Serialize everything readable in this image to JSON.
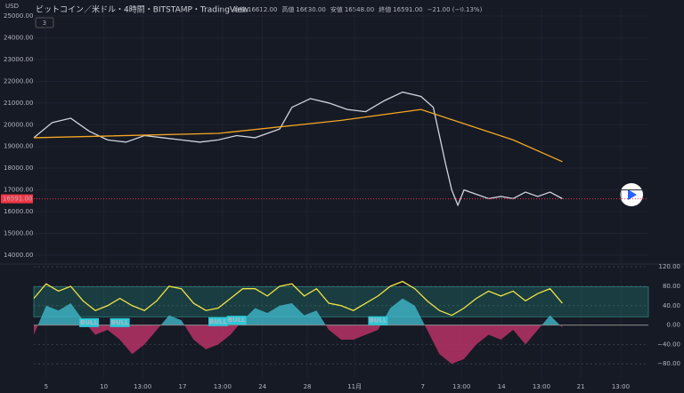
{
  "chart_data": [
    {
      "type": "line",
      "title": "ビットコイン／米ドル・4時間・BITSTAMP・TradingView",
      "currency": "USD",
      "indicator_count": "3",
      "ohlc": [
        {
          "label": "始値",
          "value": "16612.00"
        },
        {
          "label": "高値",
          "value": "16630.00"
        },
        {
          "label": "安値",
          "value": "16548.00"
        },
        {
          "label": "終値",
          "value": "16591.00"
        },
        {
          "label": "",
          "value": "−21.00 (−0.13%)"
        }
      ],
      "xlim": [
        0,
        100
      ],
      "ylim": [
        13670,
        25410
      ],
      "yticks": [
        {
          "value": 14000,
          "label": "14000.00"
        },
        {
          "value": 15000,
          "label": "15000.00"
        },
        {
          "value": 16000,
          "label": "16000.00"
        },
        {
          "value": 17000,
          "label": "17000.00"
        },
        {
          "value": 18000,
          "label": "18000.00"
        },
        {
          "value": 19000,
          "label": "19000.00"
        },
        {
          "value": 20000,
          "label": "20000.00"
        },
        {
          "value": 21000,
          "label": "21000.00"
        },
        {
          "value": 22000,
          "label": "22000.00"
        },
        {
          "value": 23000,
          "label": "23000.00"
        },
        {
          "value": 24000,
          "label": "24000.00"
        },
        {
          "value": 25000,
          "label": "25000.00"
        }
      ],
      "last_price": {
        "value": 16591,
        "label": "16591.00"
      },
      "series": [
        {
          "color": "#d1d4dc",
          "x": [
            0,
            3,
            6,
            9,
            12,
            15,
            18,
            21,
            24,
            27,
            30,
            33,
            36,
            40,
            42,
            45,
            48,
            51,
            54,
            57,
            60,
            63,
            65,
            66,
            67,
            68,
            69,
            70,
            72,
            74,
            76,
            78,
            80,
            82,
            84,
            86
          ],
          "values": [
            19400,
            20100,
            20300,
            19700,
            19300,
            19200,
            19500,
            19400,
            19300,
            19200,
            19300,
            19500,
            19400,
            19800,
            20800,
            21200,
            21000,
            20700,
            20600,
            21100,
            21500,
            21300,
            20800,
            19500,
            18200,
            17000,
            16300,
            17000,
            16800,
            16600,
            16700,
            16600,
            16900,
            16700,
            16900,
            16600
          ]
        },
        {
          "color": "#f5a623",
          "x": [
            0,
            30,
            50,
            63,
            78,
            86
          ],
          "values": [
            19400,
            19600,
            20200,
            20700,
            19300,
            18300
          ]
        }
      ]
    },
    {
      "type": "area",
      "xlim": [
        0,
        100
      ],
      "ylim": [
        -109,
        124
      ],
      "yticks": [
        {
          "value": -80,
          "label": "−80.00"
        },
        {
          "value": -40,
          "label": "−40.00"
        },
        {
          "value": 0,
          "label": "0.00"
        },
        {
          "value": 40,
          "label": "40.00"
        },
        {
          "value": 80,
          "label": "80.00"
        },
        {
          "value": 120,
          "label": "120.00"
        }
      ],
      "xticks": [
        {
          "value": 2.0,
          "label": "5"
        },
        {
          "value": 11.4,
          "label": "10"
        },
        {
          "value": 17.7,
          "label": "13:00"
        },
        {
          "value": 24.2,
          "label": "17"
        },
        {
          "value": 30.7,
          "label": "13:00"
        },
        {
          "value": 37.2,
          "label": "24"
        },
        {
          "value": 44.5,
          "label": "28"
        },
        {
          "value": 52.2,
          "label": "11月"
        },
        {
          "value": 63.3,
          "label": "7"
        },
        {
          "value": 69.6,
          "label": "13:00"
        },
        {
          "value": 76.1,
          "label": "14"
        },
        {
          "value": 82.6,
          "label": "13:00"
        },
        {
          "value": 89.0,
          "label": "21"
        },
        {
          "value": 95.5,
          "label": "13:00"
        }
      ],
      "band": [
        17,
        79
      ],
      "x": [
        0,
        2,
        4,
        6,
        8,
        10,
        12,
        14,
        16,
        18,
        20,
        22,
        24,
        26,
        28,
        30,
        32,
        34,
        36,
        38,
        40,
        42,
        44,
        46,
        48,
        50,
        52,
        54,
        56,
        58,
        60,
        62,
        64,
        66,
        68,
        70,
        72,
        74,
        76,
        78,
        80,
        82,
        84,
        86
      ],
      "series": [
        {
          "color": "#3fb8c9",
          "negative_color": "#c2336b",
          "values": [
            -20,
            40,
            30,
            45,
            10,
            -20,
            -10,
            -30,
            -60,
            -40,
            -10,
            20,
            10,
            -30,
            -50,
            -40,
            -20,
            10,
            35,
            25,
            40,
            45,
            20,
            30,
            -10,
            -30,
            -30,
            -20,
            -10,
            35,
            55,
            40,
            -10,
            -60,
            -80,
            -70,
            -40,
            -20,
            -30,
            -10,
            -40,
            -10,
            20,
            -5
          ]
        },
        {
          "color": "#f0e442",
          "values": [
            55,
            85,
            70,
            80,
            50,
            30,
            40,
            55,
            40,
            30,
            50,
            80,
            75,
            45,
            30,
            35,
            55,
            75,
            75,
            60,
            80,
            85,
            60,
            75,
            45,
            40,
            30,
            45,
            60,
            80,
            90,
            75,
            50,
            30,
            20,
            35,
            55,
            70,
            60,
            70,
            50,
            65,
            75,
            45
          ]
        }
      ],
      "annotations": [
        {
          "x": 9,
          "y": 5,
          "text": "BULL"
        },
        {
          "x": 14,
          "y": 5,
          "text": "BULL"
        },
        {
          "x": 30,
          "y": 7,
          "text": "BULL"
        },
        {
          "x": 33,
          "y": 10,
          "text": "BULL"
        },
        {
          "x": 56,
          "y": 9,
          "text": "BULL"
        }
      ]
    }
  ]
}
